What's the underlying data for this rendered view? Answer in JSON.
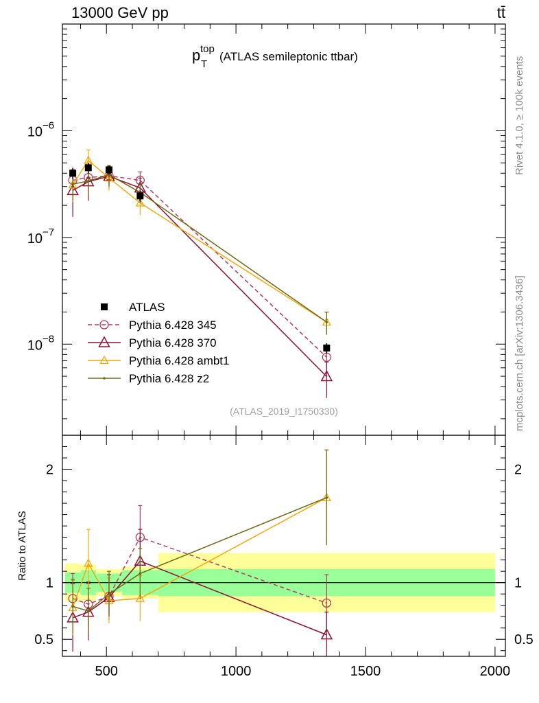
{
  "header": {
    "energy_label": "13000 GeV pp",
    "process_label": "tt̄",
    "rivet_label": "Rivet 4.1.0, ≥ 100k events",
    "mcplots_label": "mcplots.cern.ch [arXiv:1306.3436]"
  },
  "chart_data": {
    "type": "line",
    "title": {
      "main": "p",
      "superscript": "top",
      "subscript": "T",
      "suffix": "(ATLAS semileptonic ttbar)"
    },
    "reference": "(ATLAS_2019_I1750330)",
    "main_panel": {
      "yscale": "log",
      "ylim": [
        1.4e-09,
        1e-05
      ],
      "xlim": [
        330,
        2040
      ],
      "y_tick_labels": [
        {
          "value": 1e-06,
          "base": "10",
          "exp": "−6"
        },
        {
          "value": 1e-07,
          "base": "10",
          "exp": "−7"
        },
        {
          "value": 1e-08,
          "base": "10",
          "exp": "−8"
        }
      ]
    },
    "ratio_panel": {
      "ylabel": "Ratio to ATLAS",
      "ylim": [
        0.35,
        2.3
      ],
      "y_ticks": [
        0.5,
        1,
        2
      ],
      "y_tick_labels": [
        "0.5",
        "1",
        "2"
      ]
    },
    "x_ticks": [
      500,
      1000,
      1500,
      2000
    ],
    "x_tick_labels": [
      "500",
      "1000",
      "1500",
      "2000"
    ],
    "bins": [
      [
        340,
        400
      ],
      [
        400,
        460
      ],
      [
        460,
        560
      ],
      [
        560,
        700
      ],
      [
        700,
        2000
      ]
    ],
    "x": [
      370,
      430,
      510,
      630,
      1350
    ],
    "data": {
      "name": "ATLAS",
      "y": [
        4e-07,
        4.5e-07,
        4.3e-07,
        2.45e-07,
        9.2e-09
      ],
      "err": [
        5e-08,
        5e-08,
        4e-08,
        3e-08,
        1e-09
      ],
      "band_inner": [
        0.09,
        0.11,
        0.08,
        0.11,
        0.12
      ],
      "band_outer": [
        0.17,
        0.16,
        0.12,
        0.14,
        0.26
      ]
    },
    "series": [
      {
        "name": "Pythia 6.428 345",
        "color": "#b03a5a",
        "marker": "circle",
        "dashed": true,
        "ratio": [
          0.86,
          0.81,
          0.88,
          1.4,
          0.82
        ],
        "ratio_err": [
          0.22,
          0.2,
          0.16,
          0.28,
          0.25
        ]
      },
      {
        "name": "Pythia 6.428 370",
        "color": "#8e1130",
        "marker": "triangle",
        "dashed": false,
        "ratio": [
          0.69,
          0.74,
          0.87,
          1.19,
          0.54
        ],
        "ratio_err": [
          0.3,
          0.25,
          0.2,
          0.28,
          0.2
        ]
      },
      {
        "name": "Pythia 6.428 ambt1",
        "color": "#f2a80a",
        "marker": "triangle-small",
        "dashed": false,
        "ratio": [
          0.78,
          1.17,
          0.84,
          0.86,
          1.75
        ],
        "ratio_err": [
          0.24,
          0.3,
          0.2,
          0.2,
          0.42
        ]
      },
      {
        "name": "Pythia 6.428 z2",
        "color": "#6b6a12",
        "marker": "dot",
        "dashed": false,
        "ratio": [
          0.79,
          0.75,
          0.9,
          1.08,
          1.75
        ],
        "ratio_err": [
          0.24,
          0.2,
          0.2,
          0.22,
          0.42
        ]
      }
    ],
    "legend": {
      "position": "left-middle"
    }
  }
}
